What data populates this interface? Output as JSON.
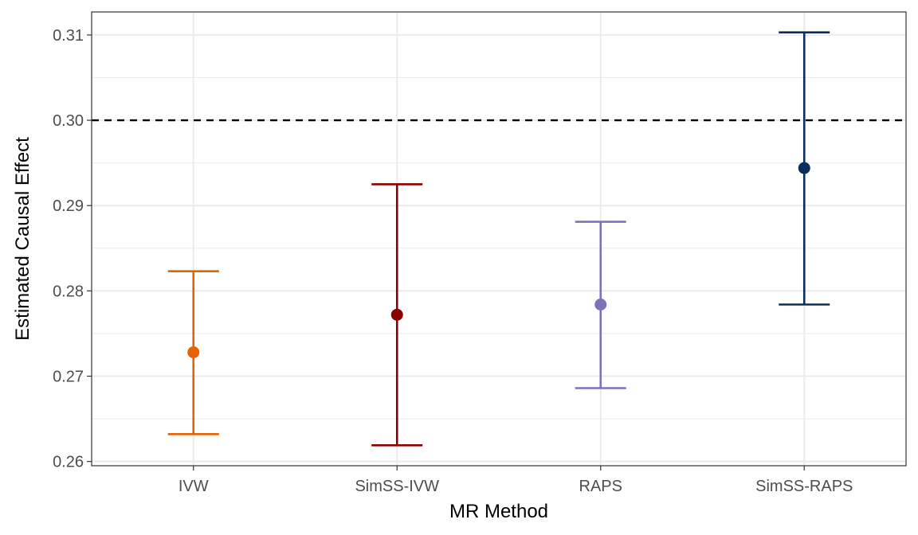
{
  "chart_data": {
    "type": "errorbar",
    "title": "",
    "xlabel": "MR Method",
    "ylabel": "Estimated Causal Effect",
    "ylim": [
      0.2595,
      0.3127
    ],
    "yticks": [
      0.26,
      0.27,
      0.28,
      0.29,
      0.3,
      0.31
    ],
    "ytick_labels": [
      "0.26",
      "0.27",
      "0.28",
      "0.29",
      "0.30",
      "0.31"
    ],
    "categories": [
      "IVW",
      "SimSS-IVW",
      "RAPS",
      "SimSS-RAPS"
    ],
    "estimates": [
      0.2728,
      0.2772,
      0.2784,
      0.2944
    ],
    "lower": [
      0.2632,
      0.2619,
      0.2686,
      0.2784
    ],
    "upper": [
      0.2823,
      0.2925,
      0.2881,
      0.3103
    ],
    "colors": [
      "#E66101",
      "#8B0000",
      "#7B73B8",
      "#0B2D5B"
    ],
    "reference_line": 0.3,
    "grid": true,
    "legend": "none"
  }
}
